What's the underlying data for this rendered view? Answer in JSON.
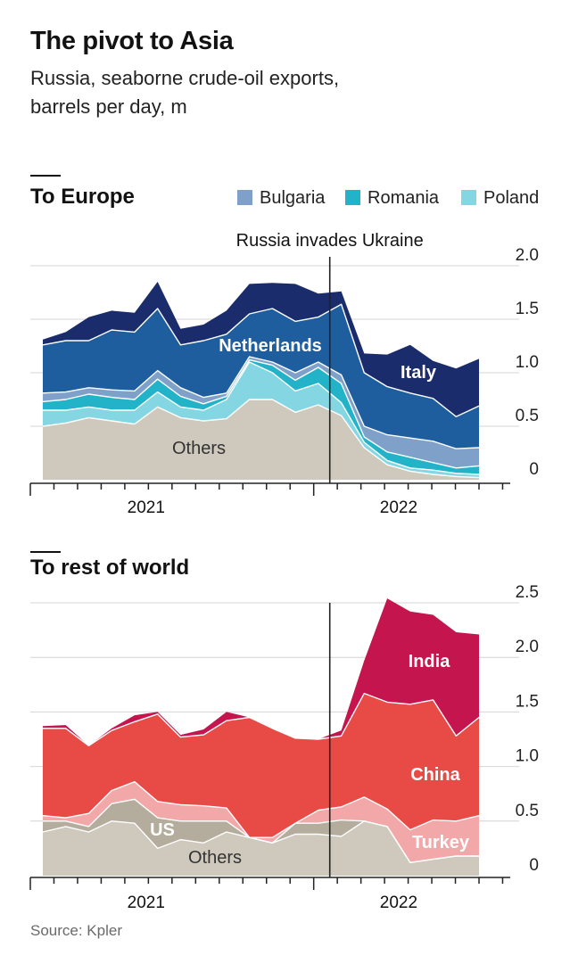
{
  "header": {
    "title": "The pivot to Asia",
    "subtitle_line1": "Russia, seaborne crude-oil exports,",
    "subtitle_line2": "barrels per day, m"
  },
  "source": "Source: Kpler",
  "colors": {
    "others": "#cfc9bd",
    "poland": "#84d6e3",
    "romania": "#22b3c8",
    "bulgaria": "#7fa1c9",
    "netherlands": "#1f5e9e",
    "italy": "#1a2c6b",
    "us": "#b4ad9d",
    "turkey": "#f2a8a8",
    "china": "#e84a45",
    "india": "#c4154f",
    "gridline": "#d4d4d4",
    "axis": "#222222",
    "event_line": "#222222"
  },
  "chart_data": [
    {
      "type": "area",
      "stacked": true,
      "panel_title": "To Europe",
      "annotation": "Russia invades Ukraine",
      "event_x": 12.5,
      "x_tick_labels": [
        "2021",
        "2022"
      ],
      "x_tick_label_positions": [
        4.5,
        15.5
      ],
      "ylim": [
        0,
        2.0
      ],
      "yticks": [
        "2.0",
        "1.5",
        "1.0",
        "0.5",
        "0"
      ],
      "ytick_values": [
        2.0,
        1.5,
        1.0,
        0.5,
        0
      ],
      "legend": [
        "Bulgaria",
        "Romania",
        "Poland"
      ],
      "legend_position": "top-right",
      "x": [
        0,
        1,
        2,
        3,
        4,
        5,
        6,
        7,
        8,
        9,
        10,
        11,
        12,
        13,
        14,
        15,
        16,
        17,
        18,
        19
      ],
      "series": [
        {
          "name": "Others",
          "key": "others",
          "label": "Others",
          "values": [
            0.5,
            0.53,
            0.58,
            0.55,
            0.52,
            0.68,
            0.58,
            0.55,
            0.57,
            0.75,
            0.75,
            0.63,
            0.7,
            0.6,
            0.3,
            0.14,
            0.08,
            0.05,
            0.03,
            0.02
          ]
        },
        {
          "name": "Poland",
          "key": "poland",
          "label": "",
          "values": [
            0.15,
            0.12,
            0.1,
            0.1,
            0.13,
            0.14,
            0.1,
            0.1,
            0.18,
            0.35,
            0.25,
            0.2,
            0.2,
            0.12,
            0.05,
            0.04,
            0.03,
            0.04,
            0.03,
            0.03
          ]
        },
        {
          "name": "Romania",
          "key": "romania",
          "label": "",
          "values": [
            0.08,
            0.1,
            0.12,
            0.12,
            0.1,
            0.12,
            0.1,
            0.06,
            0.03,
            0.02,
            0.07,
            0.1,
            0.15,
            0.18,
            0.05,
            0.08,
            0.1,
            0.07,
            0.05,
            0.08
          ]
        },
        {
          "name": "Bulgaria",
          "key": "bulgaria",
          "label": "",
          "values": [
            0.08,
            0.07,
            0.06,
            0.07,
            0.08,
            0.08,
            0.08,
            0.06,
            0.03,
            0.03,
            0.03,
            0.07,
            0.05,
            0.08,
            0.1,
            0.16,
            0.18,
            0.2,
            0.18,
            0.17
          ]
        },
        {
          "name": "Netherlands",
          "key": "netherlands",
          "label": "Netherlands",
          "values": [
            0.45,
            0.48,
            0.44,
            0.56,
            0.55,
            0.58,
            0.4,
            0.53,
            0.55,
            0.4,
            0.5,
            0.48,
            0.42,
            0.66,
            0.5,
            0.45,
            0.42,
            0.4,
            0.3,
            0.39
          ]
        },
        {
          "name": "Italy",
          "key": "italy",
          "label": "Italy",
          "values": [
            0.05,
            0.08,
            0.22,
            0.18,
            0.18,
            0.25,
            0.15,
            0.15,
            0.22,
            0.28,
            0.24,
            0.35,
            0.22,
            0.12,
            0.18,
            0.3,
            0.45,
            0.35,
            0.45,
            0.44
          ]
        }
      ]
    },
    {
      "type": "area",
      "stacked": true,
      "panel_title": "To rest of world",
      "event_x": 12.5,
      "x_tick_labels": [
        "2021",
        "2022"
      ],
      "x_tick_label_positions": [
        4.5,
        15.5
      ],
      "ylim": [
        0,
        2.5
      ],
      "yticks": [
        "2.5",
        "2.0",
        "1.5",
        "1.0",
        "0.5",
        "0"
      ],
      "ytick_values": [
        2.5,
        2.0,
        1.5,
        1.0,
        0.5,
        0
      ],
      "x": [
        0,
        1,
        2,
        3,
        4,
        5,
        6,
        7,
        8,
        9,
        10,
        11,
        12,
        13,
        14,
        15,
        16,
        17,
        18,
        19
      ],
      "series": [
        {
          "name": "Others",
          "key": "others",
          "label": "Others",
          "values": [
            0.4,
            0.45,
            0.4,
            0.5,
            0.48,
            0.25,
            0.33,
            0.3,
            0.4,
            0.35,
            0.3,
            0.38,
            0.38,
            0.36,
            0.5,
            0.45,
            0.12,
            0.15,
            0.18,
            0.18
          ]
        },
        {
          "name": "US",
          "key": "us",
          "label": "US",
          "values": [
            0.1,
            0.05,
            0.05,
            0.16,
            0.22,
            0.28,
            0.17,
            0.2,
            0.1,
            0.0,
            0.0,
            0.1,
            0.1,
            0.15,
            0.0,
            0.0,
            0.0,
            0.0,
            0.0,
            0.0
          ]
        },
        {
          "name": "Turkey",
          "key": "turkey",
          "label": "Turkey",
          "values": [
            0.05,
            0.03,
            0.12,
            0.12,
            0.16,
            0.15,
            0.15,
            0.14,
            0.12,
            0.0,
            0.05,
            0.0,
            0.12,
            0.12,
            0.22,
            0.16,
            0.3,
            0.36,
            0.32,
            0.37
          ]
        },
        {
          "name": "China",
          "key": "china",
          "label": "China",
          "values": [
            0.8,
            0.82,
            0.62,
            0.55,
            0.55,
            0.8,
            0.62,
            0.65,
            0.8,
            1.1,
            1.0,
            0.78,
            0.65,
            0.65,
            0.95,
            0.98,
            1.15,
            1.1,
            0.78,
            0.9
          ]
        },
        {
          "name": "India",
          "key": "india",
          "label": "India",
          "values": [
            0.02,
            0.03,
            0.0,
            0.02,
            0.06,
            0.02,
            0.02,
            0.05,
            0.08,
            0.0,
            0.0,
            0.0,
            0.0,
            0.05,
            0.3,
            0.95,
            0.85,
            0.78,
            0.95,
            0.76
          ]
        }
      ]
    }
  ]
}
